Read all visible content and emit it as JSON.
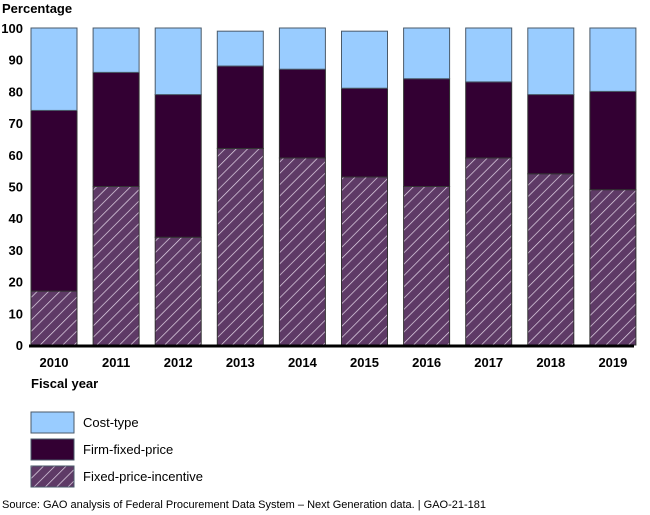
{
  "chart_data": {
    "type": "bar",
    "stacked": true,
    "title": "",
    "ylabel": "Percentage",
    "xlabel": "Fiscal year",
    "ylim": [
      0,
      100
    ],
    "yticks": [
      "0",
      "10",
      "20",
      "30",
      "40",
      "50",
      "60",
      "70",
      "80",
      "90",
      "100"
    ],
    "categories": [
      "2010",
      "2011",
      "2012",
      "2013",
      "2014",
      "2015",
      "2016",
      "2017",
      "2018",
      "2019"
    ],
    "series": [
      {
        "name": "Fixed-price-incentive",
        "color": "#5e3a66",
        "pattern": "hatch",
        "values": [
          17,
          50,
          34,
          62,
          59,
          53,
          50,
          59,
          54,
          49
        ]
      },
      {
        "name": "Firm-fixed-price",
        "color": "#330033",
        "pattern": "solid",
        "values": [
          57,
          36,
          45,
          26,
          28,
          28,
          34,
          24,
          25,
          31
        ]
      },
      {
        "name": "Cost-type",
        "color": "#99ccff",
        "pattern": "solid",
        "values": [
          26,
          14,
          21,
          11,
          13,
          18,
          16,
          17,
          21,
          20
        ]
      }
    ],
    "legend": {
      "placement": "bottom-left",
      "entries": [
        "Cost-type",
        "Firm-fixed-price",
        "Fixed-price-incentive"
      ]
    },
    "grid": false
  },
  "source": "Source: GAO analysis of Federal Procurement Data System – Next Generation data.  |  GAO-21-181"
}
